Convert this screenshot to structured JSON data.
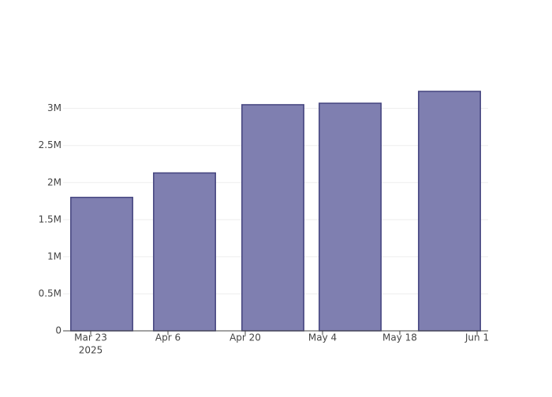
{
  "chart_data": {
    "type": "bar",
    "x": [
      "2025-03-25",
      "2025-04-09",
      "2025-04-25",
      "2025-05-09",
      "2025-05-27"
    ],
    "values": [
      1800000,
      2130000,
      3050000,
      3070000,
      3230000
    ],
    "color": "#7f7fb0",
    "line_color": "#44447f",
    "xlim": [
      "2025-03-18",
      "2025-06-03"
    ],
    "xticks": [
      {
        "value": "2025-03-23",
        "label": "Mar 23"
      },
      {
        "value": "2025-04-06",
        "label": "Apr 6"
      },
      {
        "value": "2025-04-20",
        "label": "Apr 20"
      },
      {
        "value": "2025-05-04",
        "label": "May 4"
      },
      {
        "value": "2025-05-18",
        "label": "May 18"
      },
      {
        "value": "2025-06-01",
        "label": "Jun 1"
      }
    ],
    "x_year_label": "2025",
    "ylim": [
      0,
      3400000
    ],
    "yticks": [
      0,
      {
        "value": 500000,
        "label": "0.5M"
      },
      {
        "value": 1000000,
        "label": "1M"
      },
      {
        "value": 1500000,
        "label": "1.5M"
      },
      {
        "value": 2000000,
        "label": "2M"
      },
      {
        "value": 2500000,
        "label": "2.5M"
      },
      {
        "value": 3000000,
        "label": "3M"
      }
    ],
    "grid": true
  }
}
